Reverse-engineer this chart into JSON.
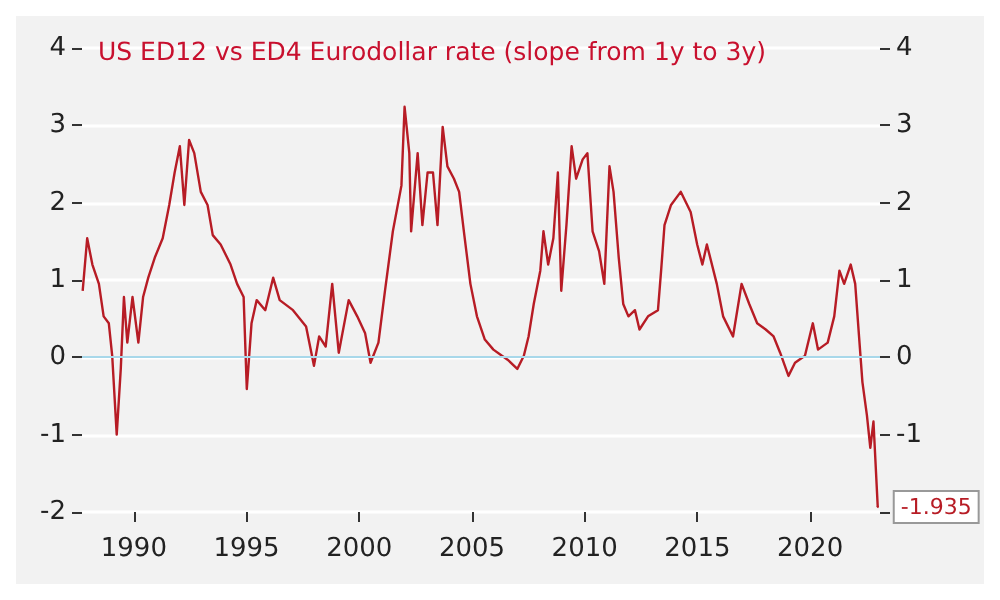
{
  "chart_data": {
    "type": "line",
    "title": "US ED12 vs ED4 Eurodollar rate (slope from 1y to 3y)",
    "series": [
      {
        "color": "#b71c25",
        "x": [
          1987.73,
          1987.93,
          1988.16,
          1988.45,
          1988.66,
          1988.89,
          1989.04,
          1989.24,
          1989.42,
          1989.56,
          1989.71,
          1989.94,
          1990.2,
          1990.41,
          1990.64,
          1990.93,
          1991.28,
          1991.57,
          1991.81,
          1992.04,
          1992.24,
          1992.45,
          1992.68,
          1992.97,
          1993.27,
          1993.5,
          1993.85,
          1994.29,
          1994.58,
          1994.87,
          1995.01,
          1995.22,
          1995.45,
          1995.83,
          1996.18,
          1996.47,
          1997.06,
          1997.64,
          1997.99,
          1998.22,
          1998.51,
          1998.8,
          1999.09,
          1999.53,
          1999.91,
          2000.26,
          2000.5,
          2000.85,
          2001.14,
          2001.49,
          2001.87,
          2002.01,
          2002.22,
          2002.3,
          2002.59,
          2002.8,
          2003.03,
          2003.27,
          2003.47,
          2003.7,
          2003.91,
          2004.2,
          2004.43,
          2004.64,
          2004.93,
          2005.22,
          2005.57,
          2005.95,
          2006.33,
          2006.58,
          2007.01,
          2007.3,
          2007.51,
          2007.74,
          2008.03,
          2008.17,
          2008.38,
          2008.61,
          2008.81,
          2008.96,
          2009.19,
          2009.42,
          2009.62,
          2009.91,
          2010.12,
          2010.35,
          2010.64,
          2010.87,
          2011.1,
          2011.28,
          2011.51,
          2011.71,
          2011.94,
          2012.23,
          2012.43,
          2012.81,
          2013.25,
          2013.39,
          2013.54,
          2013.83,
          2014.26,
          2014.7,
          2014.99,
          2015.22,
          2015.42,
          2015.86,
          2016.14,
          2016.58,
          2016.96,
          2017.3,
          2017.65,
          2018.03,
          2018.38,
          2018.67,
          2019.04,
          2019.33,
          2019.77,
          2020.12,
          2020.35,
          2020.78,
          2021.07,
          2021.3,
          2021.51,
          2021.8,
          2022.0,
          2022.17,
          2022.32,
          2022.52,
          2022.67,
          2022.81,
          2023.0
        ],
        "values": [
          0.86,
          1.54,
          1.2,
          0.95,
          0.53,
          0.44,
          0.02,
          -1.0,
          -0.15,
          0.78,
          0.19,
          0.78,
          0.19,
          0.78,
          1.03,
          1.29,
          1.54,
          1.97,
          2.39,
          2.73,
          1.97,
          2.81,
          2.64,
          2.14,
          1.97,
          1.58,
          1.46,
          1.2,
          0.95,
          0.78,
          -0.41,
          0.44,
          0.74,
          0.61,
          1.03,
          0.74,
          0.61,
          0.4,
          -0.11,
          0.27,
          0.14,
          0.95,
          0.06,
          0.74,
          0.53,
          0.31,
          -0.07,
          0.19,
          0.86,
          1.63,
          2.22,
          3.24,
          2.64,
          1.63,
          2.64,
          1.71,
          2.39,
          2.39,
          1.71,
          2.98,
          2.47,
          2.31,
          2.14,
          1.63,
          0.95,
          0.53,
          0.23,
          0.1,
          0.02,
          -0.03,
          -0.15,
          0.02,
          0.27,
          0.69,
          1.12,
          1.63,
          1.2,
          1.54,
          2.39,
          0.86,
          1.71,
          2.73,
          2.31,
          2.56,
          2.64,
          1.63,
          1.37,
          0.95,
          2.47,
          2.14,
          1.29,
          0.69,
          0.53,
          0.61,
          0.36,
          0.53,
          0.61,
          1.12,
          1.71,
          1.97,
          2.14,
          1.88,
          1.46,
          1.2,
          1.46,
          0.95,
          0.53,
          0.27,
          0.95,
          0.69,
          0.44,
          0.36,
          0.27,
          0.06,
          -0.24,
          -0.07,
          0.02,
          0.44,
          0.1,
          0.19,
          0.53,
          1.12,
          0.95,
          1.2,
          0.95,
          0.27,
          -0.32,
          -0.75,
          -1.17,
          -0.83,
          -1.935
        ]
      }
    ],
    "xlim": [
      1987.7,
      2023.1
    ],
    "xticks": [
      1990,
      1995,
      2000,
      2005,
      2010,
      2015,
      2020
    ],
    "ylim": [
      -2,
      4
    ],
    "yticks": [
      -2,
      -1,
      0,
      1,
      2,
      3,
      4
    ],
    "y2lim": [
      -2,
      4
    ],
    "y2ticks": [
      {
        "value": -2,
        "label": null
      },
      -1,
      0,
      1,
      2,
      3,
      4
    ],
    "ref_lines": [
      {
        "axis": "y",
        "value": 0,
        "color": "#a8d8ea"
      }
    ],
    "annotations": [
      {
        "text": "-1.935",
        "x": 2023.0,
        "y": -1.935
      }
    ],
    "grid": "y",
    "marker": "none",
    "line_style": "solid"
  }
}
